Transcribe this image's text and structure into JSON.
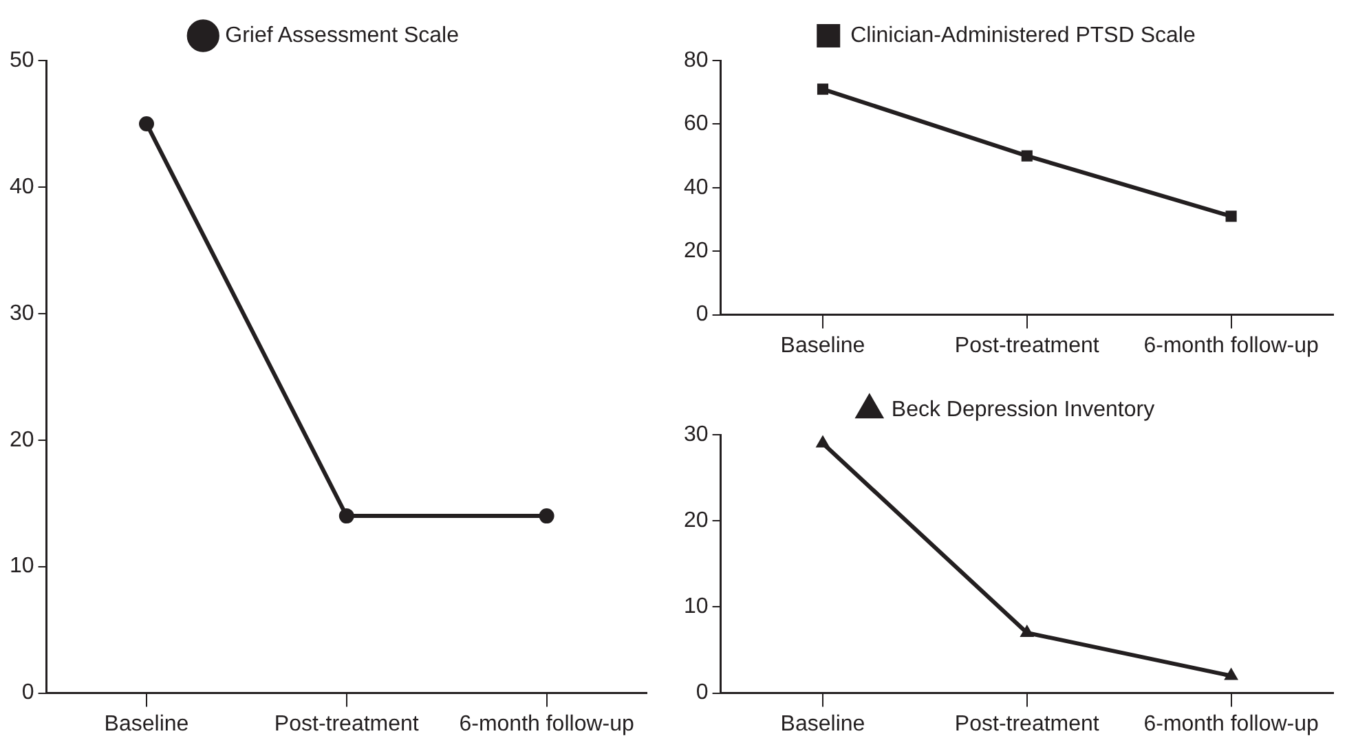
{
  "chart_data": [
    {
      "type": "line",
      "categories": [
        "Baseline",
        "Post-treatment",
        "6-month follow-up"
      ],
      "series": [
        {
          "name": "Grief Assessment Scale",
          "color": "#231f20",
          "values": [
            45,
            14,
            14
          ]
        }
      ],
      "marker": "circle",
      "ylim": [
        0,
        50
      ],
      "yticks": [
        0,
        10,
        20,
        30,
        40,
        50
      ],
      "grid": false,
      "legend": "top"
    },
    {
      "type": "line",
      "categories": [
        "Baseline",
        "Post-treatment",
        "6-month follow-up"
      ],
      "series": [
        {
          "name": "Clinician-Administered PTSD Scale",
          "color": "#231f20",
          "values": [
            71,
            50,
            31
          ]
        }
      ],
      "marker": "square",
      "ylim": [
        0,
        80
      ],
      "yticks": [
        0,
        20,
        40,
        60,
        80
      ],
      "grid": false,
      "legend": "top"
    },
    {
      "type": "line",
      "categories": [
        "Baseline",
        "Post-treatment",
        "6-month follow-up"
      ],
      "series": [
        {
          "name": "Beck Depression Inventory",
          "color": "#231f20",
          "values": [
            29,
            7,
            2
          ]
        }
      ],
      "marker": "triangle",
      "ylim": [
        0,
        30
      ],
      "yticks": [
        0,
        10,
        20,
        30
      ],
      "grid": false,
      "legend": "top"
    }
  ]
}
